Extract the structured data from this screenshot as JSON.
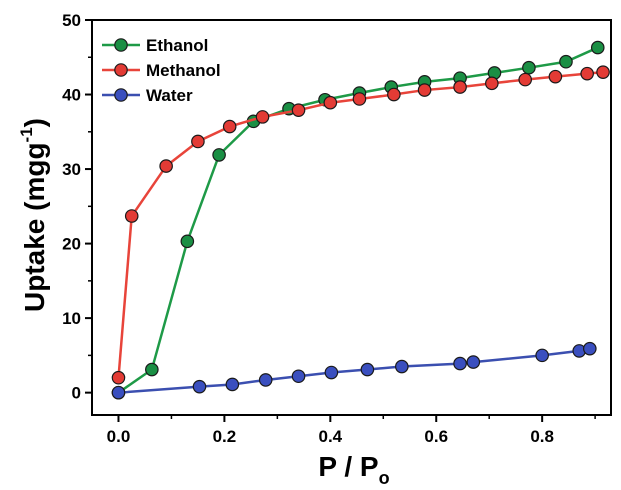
{
  "chart_data": {
    "type": "line",
    "title": "",
    "xlabel": {
      "main": "P / P",
      "subscript": "o"
    },
    "ylabel": {
      "main": "Uptake (mgg",
      "superscript": "-1",
      "close": ")"
    },
    "xlim": [
      -0.05,
      0.93
    ],
    "ylim": [
      -3,
      50
    ],
    "xticks": [
      0.0,
      0.2,
      0.4,
      0.6,
      0.8
    ],
    "xtick_labels": [
      "0.0",
      "0.2",
      "0.4",
      "0.6",
      "0.8"
    ],
    "yticks": [
      0,
      10,
      20,
      30,
      40,
      50
    ],
    "ytick_labels": [
      "0",
      "10",
      "20",
      "30",
      "40",
      "50"
    ],
    "grid": false,
    "legend_position": "top-left",
    "series": [
      {
        "name": "Ethanol",
        "color": "#1e9a47",
        "marker_fill": "#1a8f44",
        "x": [
          0.0,
          0.063,
          0.13,
          0.19,
          0.255,
          0.322,
          0.39,
          0.455,
          0.515,
          0.578,
          0.645,
          0.71,
          0.775,
          0.845,
          0.905
        ],
        "y": [
          0.0,
          3.1,
          20.3,
          31.9,
          36.4,
          38.1,
          39.3,
          40.2,
          41.0,
          41.7,
          42.2,
          42.9,
          43.6,
          44.4,
          46.3
        ]
      },
      {
        "name": "Methanol",
        "color": "#e8443a",
        "marker_fill": "#e33b35",
        "x": [
          0.0,
          0.025,
          0.09,
          0.15,
          0.21,
          0.272,
          0.34,
          0.4,
          0.455,
          0.52,
          0.578,
          0.645,
          0.705,
          0.768,
          0.825,
          0.885,
          0.915
        ],
        "y": [
          2.0,
          23.7,
          30.4,
          33.7,
          35.7,
          37.0,
          37.9,
          38.9,
          39.4,
          40.0,
          40.6,
          41.0,
          41.5,
          42.0,
          42.4,
          42.8,
          43.0
        ]
      },
      {
        "name": "Water",
        "color": "#3b4fb0",
        "marker_fill": "#3a4fbf",
        "x": [
          0.0,
          0.153,
          0.215,
          0.278,
          0.34,
          0.402,
          0.47,
          0.535,
          0.645,
          0.67,
          0.8,
          0.87,
          0.89
        ],
        "y": [
          0.0,
          0.8,
          1.1,
          1.7,
          2.2,
          2.7,
          3.1,
          3.5,
          3.9,
          4.1,
          5.0,
          5.6,
          5.9
        ]
      }
    ]
  }
}
